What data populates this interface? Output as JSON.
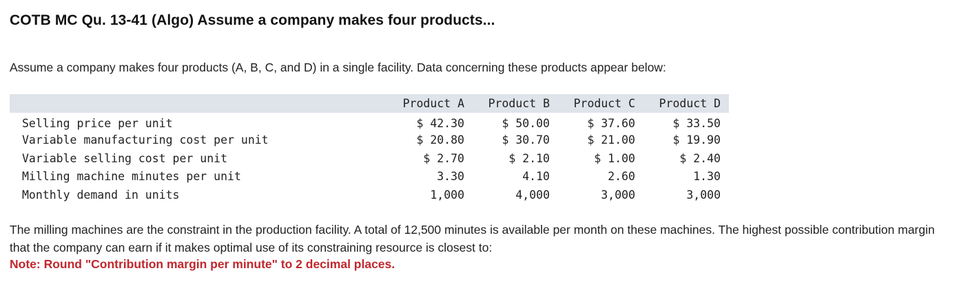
{
  "title": "COTB MC Qu. 13-41 (Algo) Assume a company makes four products...",
  "intro": "Assume a company makes four products (A, B, C, and D) in a single facility. Data concerning these products appear below:",
  "table": {
    "headers": [
      "Product A",
      "Product B",
      "Product C",
      "Product D"
    ],
    "rows": [
      {
        "label": "Selling price per unit",
        "values": [
          "$ 42.30",
          "$ 50.00",
          "$ 37.60",
          "$ 33.50"
        ]
      },
      {
        "label": "Variable manufacturing cost per unit",
        "values": [
          "$ 20.80",
          "$ 30.70",
          "$ 21.00",
          "$ 19.90"
        ]
      },
      {
        "label": "Variable selling cost per unit",
        "values": [
          "$ 2.70",
          "$ 2.10",
          "$ 1.00",
          "$ 2.40"
        ]
      },
      {
        "label": "Milling machine minutes per unit",
        "values": [
          "3.30",
          "4.10",
          "2.60",
          "1.30"
        ]
      },
      {
        "label": "Monthly demand in units",
        "values": [
          "1,000",
          "4,000",
          "3,000",
          "3,000"
        ]
      }
    ]
  },
  "body": "The milling machines are the constraint in the production facility. A total of 12,500 minutes is available per month on these machines. The highest possible contribution margin that the company can earn if it makes optimal use of its constraining resource is closest to:",
  "note": "Note: Round \"Contribution margin per minute\" to 2 decimal places."
}
